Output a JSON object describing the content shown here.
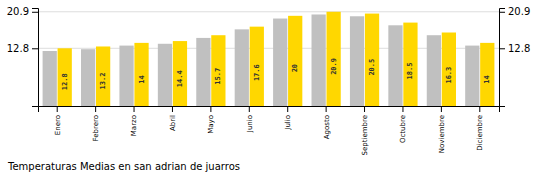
{
  "chart_data": {
    "type": "bar",
    "title": "Temperaturas Medias en san adrian de juarros",
    "categories": [
      "Enero",
      "Febrero",
      "Marzo",
      "Abril",
      "Mayo",
      "Junio",
      "Julio",
      "Agosto",
      "Septiembre",
      "Octubre",
      "Noviembre",
      "Diciembre"
    ],
    "series": [
      {
        "color": "#C0C0C0",
        "values": [
          12.2,
          12.6,
          13.4,
          13.8,
          15.1,
          17.0,
          19.4,
          20.3,
          19.9,
          17.9,
          15.7,
          13.4
        ]
      },
      {
        "color": "#FFD700",
        "values": [
          12.8,
          13.2,
          14.0,
          14.4,
          15.7,
          17.6,
          20.0,
          20.9,
          20.5,
          18.5,
          16.3,
          14.0
        ],
        "data_labels": true
      }
    ],
    "ylim": [
      0,
      21.736
    ],
    "yticks": [
      12.8,
      20.9
    ],
    "grid": true
  }
}
